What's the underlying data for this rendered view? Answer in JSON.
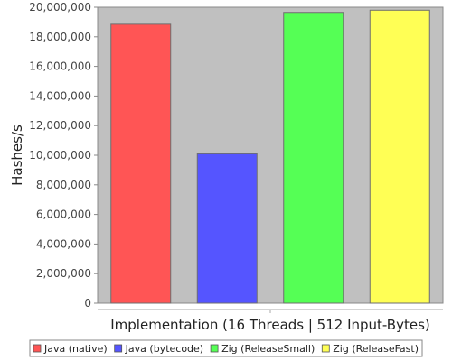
{
  "chart_data": {
    "type": "bar",
    "title": "",
    "xlabel": "Implementation (16 Threads | 512 Input-Bytes)",
    "ylabel": "Hashes/s",
    "ylim": [
      0,
      20000000
    ],
    "yticks": [
      "0",
      "2,000,000",
      "4,000,000",
      "6,000,000",
      "8,000,000",
      "10,000,000",
      "12,000,000",
      "14,000,000",
      "16,000,000",
      "18,000,000",
      "20,000,000"
    ],
    "grid": false,
    "legend_position": "bottom",
    "series": [
      {
        "name": "Java (native)",
        "value": 18850000,
        "color": "#ff5555"
      },
      {
        "name": "Java (bytecode)",
        "value": 10100000,
        "color": "#5555ff"
      },
      {
        "name": "Zig (ReleaseSmall)",
        "value": 19650000,
        "color": "#55ff55"
      },
      {
        "name": "Zig (ReleaseFast)",
        "value": 19800000,
        "color": "#ffff55"
      }
    ],
    "plot_background": "#c0c0c0"
  }
}
